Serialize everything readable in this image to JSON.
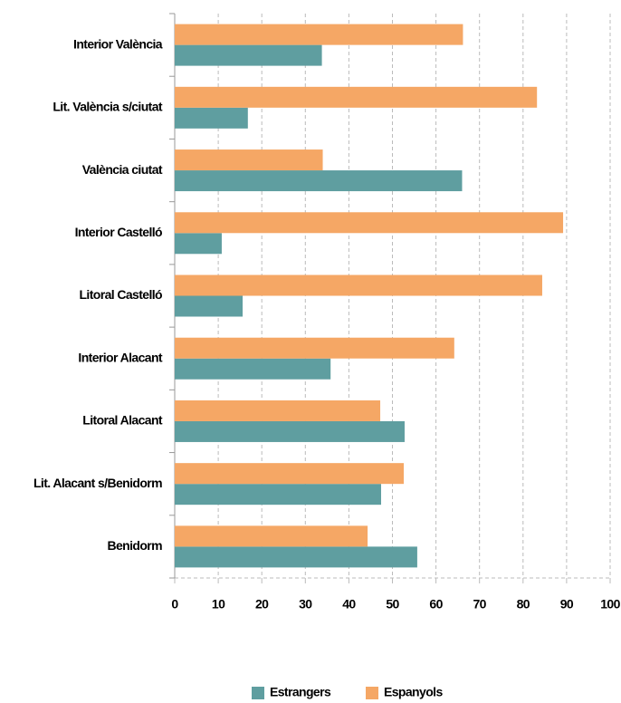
{
  "chart_data": {
    "type": "bar",
    "orientation": "horizontal",
    "categories": [
      "Interior València",
      "Lit. València s/ciutat",
      "València ciutat",
      "Interior Castelló",
      "Litoral Castelló",
      "Interior Alacant",
      "Litoral Alacant",
      "Lit. Alacant s/Benidorm",
      "Benidorm"
    ],
    "series": [
      {
        "name": "Estrangers",
        "color": "#5f9ea0",
        "values": [
          33.8,
          16.8,
          66.0,
          10.8,
          15.6,
          35.8,
          52.8,
          47.4,
          55.7
        ]
      },
      {
        "name": "Espanyols",
        "color": "#f5a765",
        "values": [
          66.2,
          83.2,
          34.0,
          89.2,
          84.4,
          64.2,
          47.2,
          52.6,
          44.3
        ]
      }
    ],
    "xlim": [
      0,
      100
    ],
    "xticks": [
      0,
      10,
      20,
      30,
      40,
      50,
      60,
      70,
      80,
      90,
      100
    ],
    "grid": true,
    "legend": "bottom"
  }
}
